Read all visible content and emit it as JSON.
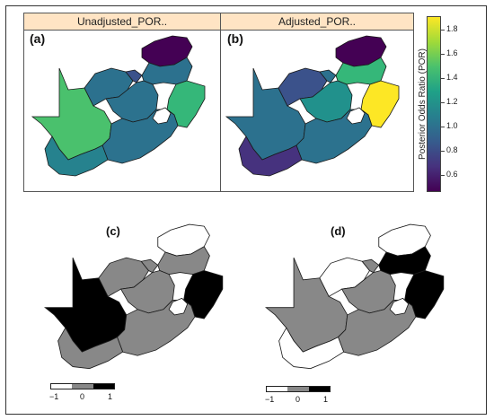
{
  "panels_top": {
    "left_strip": "Unadjusted_POR..",
    "right_strip": "Adjusted_POR..",
    "left_letter": "(a)",
    "right_letter": "(b)"
  },
  "colorbar": {
    "title": "Posterior Odds Ratio (POR)",
    "ticks": [
      "1.8",
      "1.6",
      "1.4",
      "1.2",
      "1.0",
      "0.8",
      "0.6"
    ],
    "palette": [
      "#fde725",
      "#a0da39",
      "#4ac16d",
      "#1fa187",
      "#277f8e",
      "#365c8d",
      "#46327e",
      "#440154"
    ]
  },
  "panels_bottom": {
    "left_letter": "(c)",
    "right_letter": "(d)",
    "legend_labels": [
      "−1",
      "0",
      "1"
    ],
    "legend_colors": [
      "#ffffff",
      "#888888",
      "#000000"
    ]
  },
  "regions": {
    "unadjusted": {
      "western": "#4ac16d",
      "northwest": "#2c718e",
      "gauteng": "#3b528b",
      "limpopo": "#440154",
      "mpumalanga": "#2c718e",
      "freestate": "#2c728e",
      "kzn": "#35b779",
      "eastern": "#2c728e",
      "westerncape": "#26828e"
    },
    "adjusted": {
      "western": "#2c718e",
      "northwest": "#3b528b",
      "gauteng": "#2c718e",
      "limpopo": "#440154",
      "mpumalanga": "#35b779",
      "freestate": "#21918c",
      "kzn": "#fde725",
      "eastern": "#2c728e",
      "westerncape": "#46327e"
    },
    "c": {
      "western": "#000000",
      "northwest": "#888888",
      "gauteng": "#888888",
      "limpopo": "#ffffff",
      "mpumalanga": "#888888",
      "freestate": "#888888",
      "kzn": "#000000",
      "eastern": "#888888",
      "westerncape": "#888888"
    },
    "d": {
      "western": "#888888",
      "northwest": "#ffffff",
      "gauteng": "#888888",
      "limpopo": "#ffffff",
      "mpumalanga": "#000000",
      "freestate": "#888888",
      "kzn": "#000000",
      "eastern": "#888888",
      "westerncape": "#ffffff"
    }
  }
}
